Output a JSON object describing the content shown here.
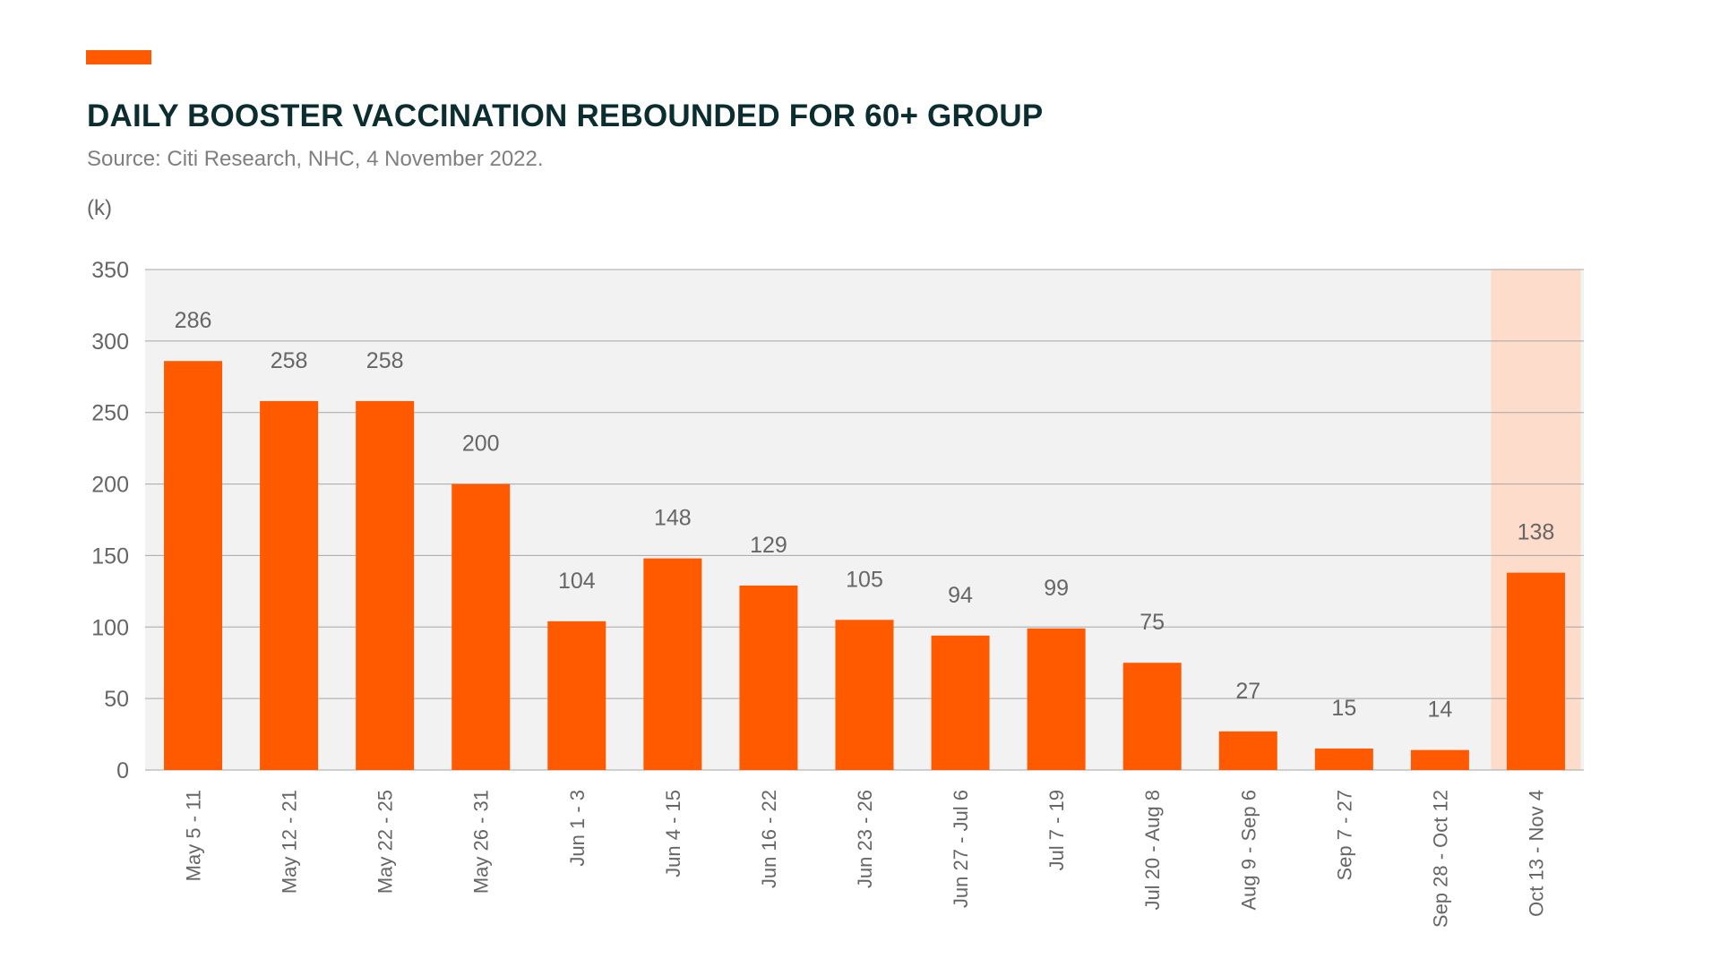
{
  "header": {
    "title": "DAILY BOOSTER VACCINATION REBOUNDED FOR 60+ GROUP",
    "source": "Source: Citi Research, NHC, 4 November 2022.",
    "unit_label": "(k)"
  },
  "colors": {
    "bar": "#ff5a00",
    "accent": "#ff5a00",
    "highlight": "#fddccb",
    "plot_bg": "#f2f2f2",
    "grid": "#a6a6a6",
    "title": "#0b2d2f",
    "label": "#666666"
  },
  "chart_data": {
    "type": "bar",
    "categories": [
      "May 5 - 11",
      "May 12 - 21",
      "May 22 - 25",
      "May 26 - 31",
      "Jun 1 - 3",
      "Jun 4 - 15",
      "Jun 16 - 22",
      "Jun 23 - 26",
      "Jun 27 - Jul 6",
      "Jul 7 - 19",
      "Jul 20 - Aug 8",
      "Aug 9 - Sep 6",
      "Sep 7 - 27",
      "Sep 28 - Oct 12",
      "Oct 13 - Nov 4"
    ],
    "values": [
      286,
      258,
      258,
      200,
      104,
      148,
      129,
      105,
      94,
      99,
      75,
      27,
      15,
      14,
      138
    ],
    "data_labels": [
      "286",
      "258",
      "258",
      "200",
      "104",
      "148",
      "129",
      "105",
      "94",
      "99",
      "75",
      "27",
      "15",
      "14",
      "138"
    ],
    "ylim": [
      0,
      350
    ],
    "yticks": [
      0,
      50,
      100,
      150,
      200,
      250,
      300,
      350
    ],
    "highlighted_category": "Oct 13 - Nov 4",
    "grid": true,
    "legend": false
  }
}
